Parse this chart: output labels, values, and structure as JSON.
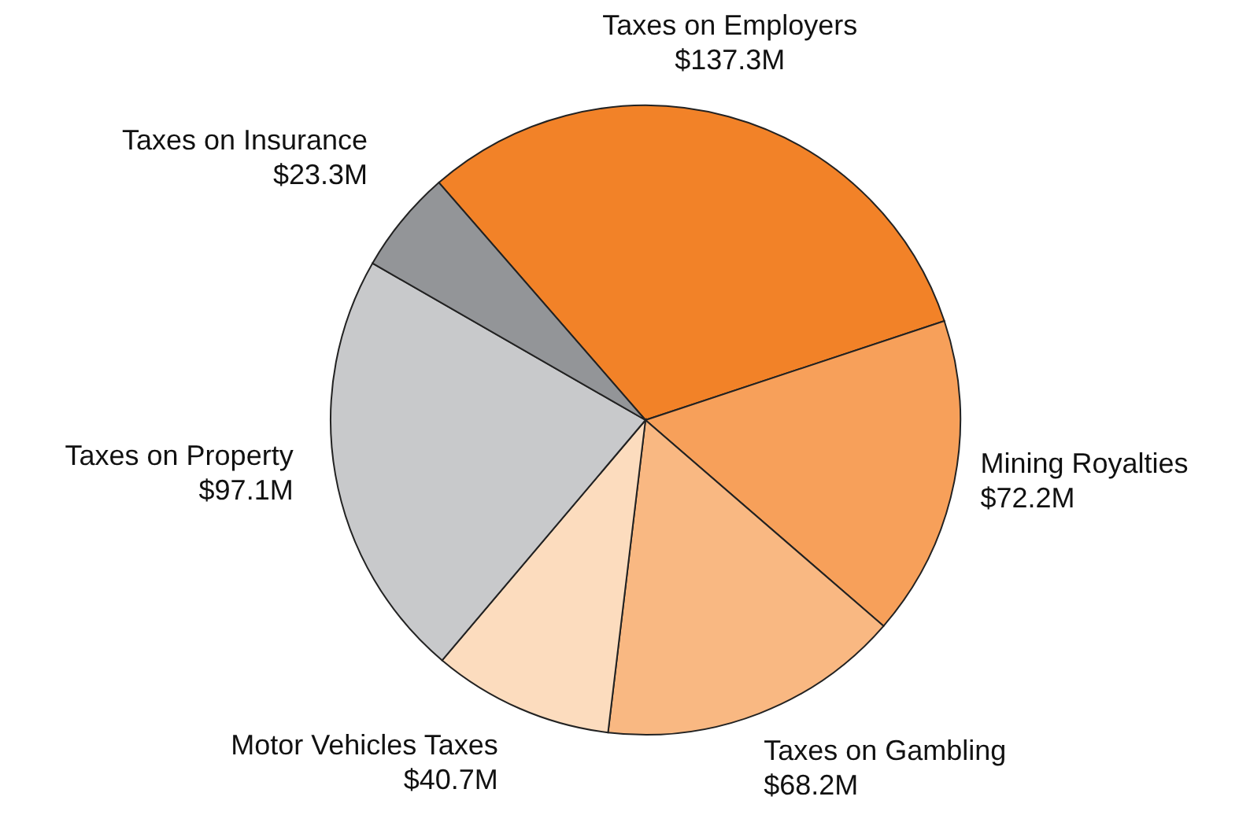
{
  "chart_data": {
    "type": "pie",
    "categories": [
      "Taxes on Employers",
      "Mining Royalties",
      "Taxes on Gambling",
      "Motor Vehicles Taxes",
      "Taxes on Property",
      "Taxes on Insurance"
    ],
    "values": [
      137.3,
      72.2,
      68.2,
      40.7,
      97.1,
      23.3
    ],
    "value_labels": [
      "$137.3M",
      "$72.2M",
      "$68.2M",
      "$40.7M",
      "$97.1M",
      "$23.3M"
    ],
    "colors": [
      "#f28228",
      "#f7a05a",
      "#f9b882",
      "#fcdcbe",
      "#c8c9cb",
      "#939598"
    ],
    "legend": false
  }
}
